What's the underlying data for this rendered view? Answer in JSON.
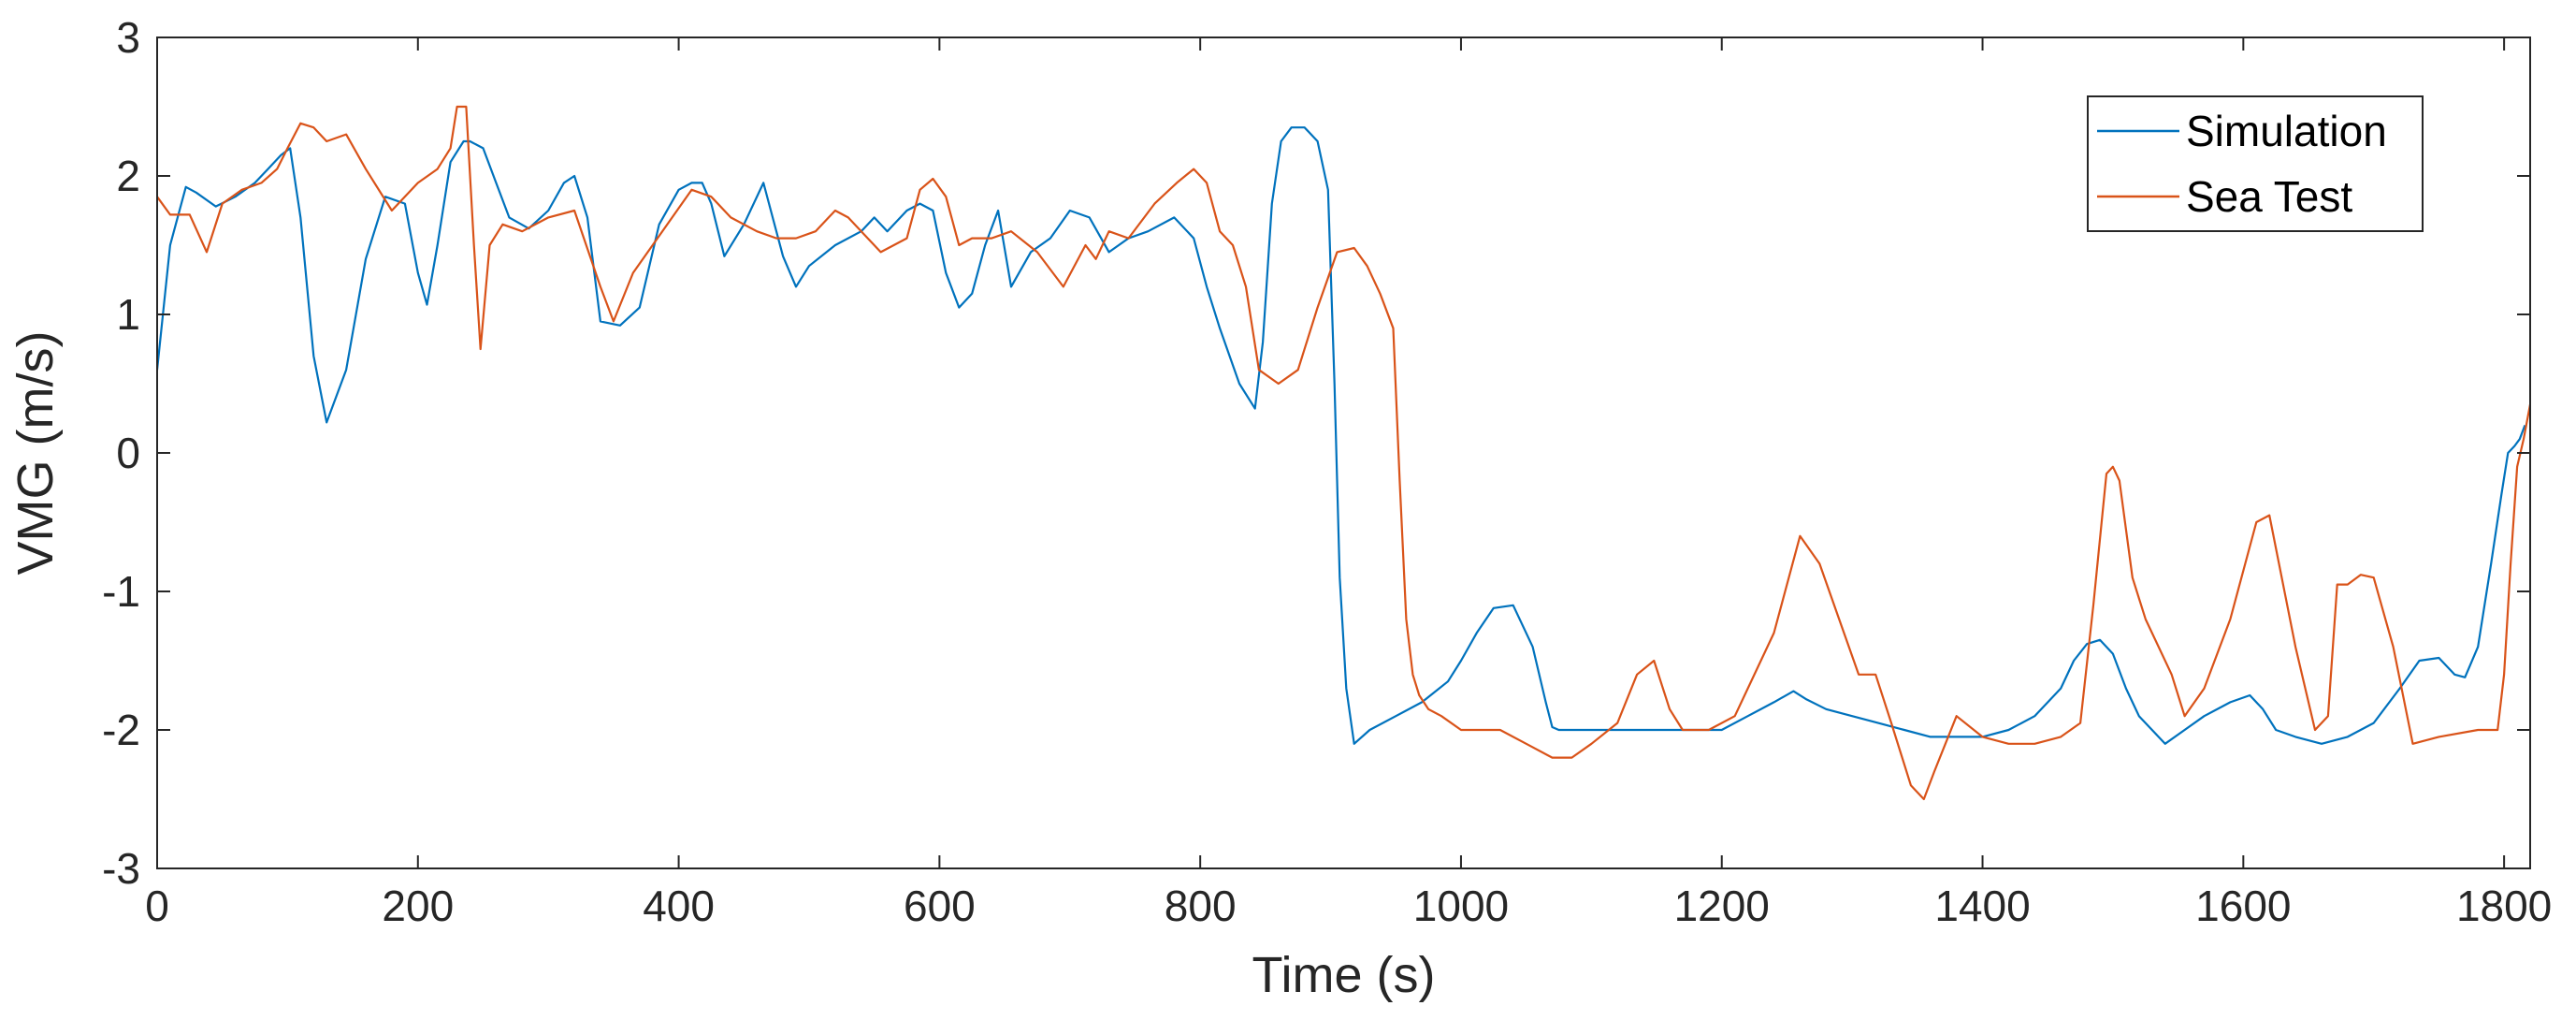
{
  "chart_data": {
    "type": "line",
    "title": "",
    "xlabel": "Time (s)",
    "ylabel": "VMG (m/s)",
    "xlim": [
      0,
      1820
    ],
    "ylim": [
      -3,
      3
    ],
    "x_ticks": [
      0,
      200,
      400,
      600,
      800,
      1000,
      1200,
      1400,
      1600,
      1800
    ],
    "x_tick_labels": [
      "0",
      "200",
      "400",
      "600",
      "800",
      "1000",
      "1200",
      "1400",
      "1600",
      "1800"
    ],
    "y_ticks": [
      -3,
      -2,
      -1,
      0,
      1,
      2,
      3
    ],
    "y_tick_labels": [
      "-3",
      "-2",
      "-1",
      "0",
      "1",
      "2",
      "3"
    ],
    "grid": false,
    "legend": {
      "position": "top-right",
      "entries": [
        "Simulation",
        "Sea Test"
      ]
    },
    "series": [
      {
        "name": "Simulation",
        "color": "#0072BD",
        "x": [
          0,
          10,
          22,
          30,
          45,
          60,
          75,
          85,
          95,
          102,
          110,
          120,
          130,
          145,
          160,
          175,
          190,
          200,
          207,
          215,
          225,
          235,
          240,
          250,
          260,
          270,
          285,
          300,
          312,
          320,
          330,
          340,
          355,
          370,
          385,
          400,
          410,
          418,
          425,
          435,
          450,
          465,
          480,
          490,
          500,
          520,
          540,
          550,
          560,
          575,
          585,
          595,
          605,
          615,
          625,
          635,
          645,
          655,
          670,
          685,
          700,
          715,
          730,
          745,
          760,
          780,
          795,
          805,
          815,
          830,
          842,
          848,
          855,
          862,
          870,
          880,
          890,
          898,
          903,
          907,
          912,
          918,
          930,
          950,
          970,
          990,
          1000,
          1012,
          1025,
          1040,
          1055,
          1065,
          1070,
          1075,
          1090,
          1110,
          1140,
          1170,
          1200,
          1220,
          1240,
          1255,
          1265,
          1280,
          1300,
          1320,
          1340,
          1360,
          1380,
          1400,
          1420,
          1440,
          1460,
          1470,
          1480,
          1490,
          1500,
          1510,
          1520,
          1540,
          1555,
          1570,
          1590,
          1605,
          1615,
          1625,
          1640,
          1660,
          1680,
          1700,
          1720,
          1735,
          1750,
          1762,
          1770,
          1780,
          1790,
          1798,
          1803,
          1808,
          1812,
          1816
        ],
        "y": [
          0.6,
          1.5,
          1.92,
          1.88,
          1.78,
          1.85,
          1.95,
          2.05,
          2.15,
          2.2,
          1.7,
          0.7,
          0.22,
          0.6,
          1.4,
          1.85,
          1.8,
          1.3,
          1.07,
          1.5,
          2.1,
          2.25,
          2.25,
          2.2,
          1.95,
          1.7,
          1.62,
          1.75,
          1.95,
          2.0,
          1.7,
          0.95,
          0.92,
          1.05,
          1.65,
          1.9,
          1.95,
          1.95,
          1.8,
          1.42,
          1.65,
          1.95,
          1.42,
          1.2,
          1.35,
          1.5,
          1.6,
          1.7,
          1.6,
          1.75,
          1.8,
          1.75,
          1.3,
          1.05,
          1.15,
          1.5,
          1.75,
          1.2,
          1.45,
          1.55,
          1.75,
          1.7,
          1.45,
          1.55,
          1.6,
          1.7,
          1.55,
          1.2,
          0.9,
          0.5,
          0.32,
          0.8,
          1.8,
          2.25,
          2.35,
          2.35,
          2.25,
          1.9,
          0.5,
          -0.9,
          -1.7,
          -2.1,
          -2.0,
          -1.9,
          -1.8,
          -1.65,
          -1.5,
          -1.3,
          -1.12,
          -1.1,
          -1.4,
          -1.8,
          -1.98,
          -2.0,
          -2.0,
          -2.0,
          -2.0,
          -2.0,
          -2.0,
          -1.9,
          -1.8,
          -1.72,
          -1.78,
          -1.85,
          -1.9,
          -1.95,
          -2.0,
          -2.05,
          -2.05,
          -2.05,
          -2.0,
          -1.9,
          -1.7,
          -1.5,
          -1.38,
          -1.35,
          -1.45,
          -1.7,
          -1.9,
          -2.1,
          -2.0,
          -1.9,
          -1.8,
          -1.75,
          -1.85,
          -2.0,
          -2.05,
          -2.1,
          -2.05,
          -1.95,
          -1.7,
          -1.5,
          -1.48,
          -1.6,
          -1.62,
          -1.4,
          -0.8,
          -0.3,
          0.0,
          0.05,
          0.1,
          0.2
        ]
      },
      {
        "name": "Sea Test",
        "color": "#D95319",
        "x": [
          0,
          10,
          25,
          38,
          50,
          65,
          80,
          92,
          100,
          110,
          120,
          130,
          145,
          160,
          180,
          200,
          215,
          225,
          230,
          237,
          243,
          248,
          255,
          265,
          280,
          300,
          320,
          340,
          350,
          365,
          380,
          395,
          410,
          425,
          440,
          460,
          475,
          490,
          505,
          515,
          520,
          530,
          545,
          555,
          575,
          585,
          595,
          605,
          615,
          625,
          640,
          655,
          675,
          695,
          712,
          720,
          730,
          745,
          765,
          782,
          795,
          805,
          815,
          825,
          835,
          845,
          860,
          875,
          890,
          905,
          918,
          928,
          938,
          948,
          953,
          958,
          963,
          968,
          975,
          985,
          1000,
          1030,
          1050,
          1070,
          1085,
          1100,
          1120,
          1135,
          1148,
          1160,
          1170,
          1190,
          1210,
          1240,
          1260,
          1275,
          1290,
          1305,
          1318,
          1330,
          1345,
          1355,
          1363,
          1380,
          1400,
          1420,
          1440,
          1460,
          1475,
          1485,
          1495,
          1500,
          1505,
          1515,
          1525,
          1545,
          1555,
          1570,
          1590,
          1610,
          1620,
          1640,
          1655,
          1665,
          1672,
          1680,
          1690,
          1700,
          1715,
          1730,
          1750,
          1780,
          1795,
          1800,
          1805,
          1810,
          1815,
          1820
        ],
        "y": [
          1.85,
          1.72,
          1.72,
          1.45,
          1.8,
          1.9,
          1.95,
          2.05,
          2.2,
          2.38,
          2.35,
          2.25,
          2.3,
          2.05,
          1.75,
          1.95,
          2.05,
          2.2,
          2.5,
          2.5,
          1.5,
          0.75,
          1.5,
          1.65,
          1.6,
          1.7,
          1.75,
          1.2,
          0.95,
          1.3,
          1.5,
          1.7,
          1.9,
          1.85,
          1.7,
          1.6,
          1.55,
          1.55,
          1.6,
          1.7,
          1.75,
          1.7,
          1.55,
          1.45,
          1.55,
          1.9,
          1.98,
          1.85,
          1.5,
          1.55,
          1.55,
          1.6,
          1.45,
          1.2,
          1.5,
          1.4,
          1.6,
          1.55,
          1.8,
          1.95,
          2.05,
          1.95,
          1.6,
          1.5,
          1.2,
          0.6,
          0.5,
          0.6,
          1.05,
          1.45,
          1.48,
          1.35,
          1.15,
          0.9,
          -0.2,
          -1.2,
          -1.6,
          -1.75,
          -1.85,
          -1.9,
          -2.0,
          -2.0,
          -2.1,
          -2.2,
          -2.2,
          -2.1,
          -1.95,
          -1.6,
          -1.5,
          -1.85,
          -2.0,
          -2.0,
          -1.9,
          -1.3,
          -0.6,
          -0.8,
          -1.2,
          -1.6,
          -1.6,
          -1.95,
          -2.4,
          -2.5,
          -2.3,
          -1.9,
          -2.05,
          -2.1,
          -2.1,
          -2.05,
          -1.95,
          -1.1,
          -0.15,
          -0.1,
          -0.2,
          -0.9,
          -1.2,
          -1.6,
          -1.9,
          -1.7,
          -1.2,
          -0.5,
          -0.45,
          -1.4,
          -2.0,
          -1.9,
          -0.95,
          -0.95,
          -0.88,
          -0.9,
          -1.4,
          -2.1,
          -2.05,
          -2.0,
          -2.0,
          -1.6,
          -0.8,
          -0.1,
          0.1,
          0.35
        ]
      }
    ]
  }
}
